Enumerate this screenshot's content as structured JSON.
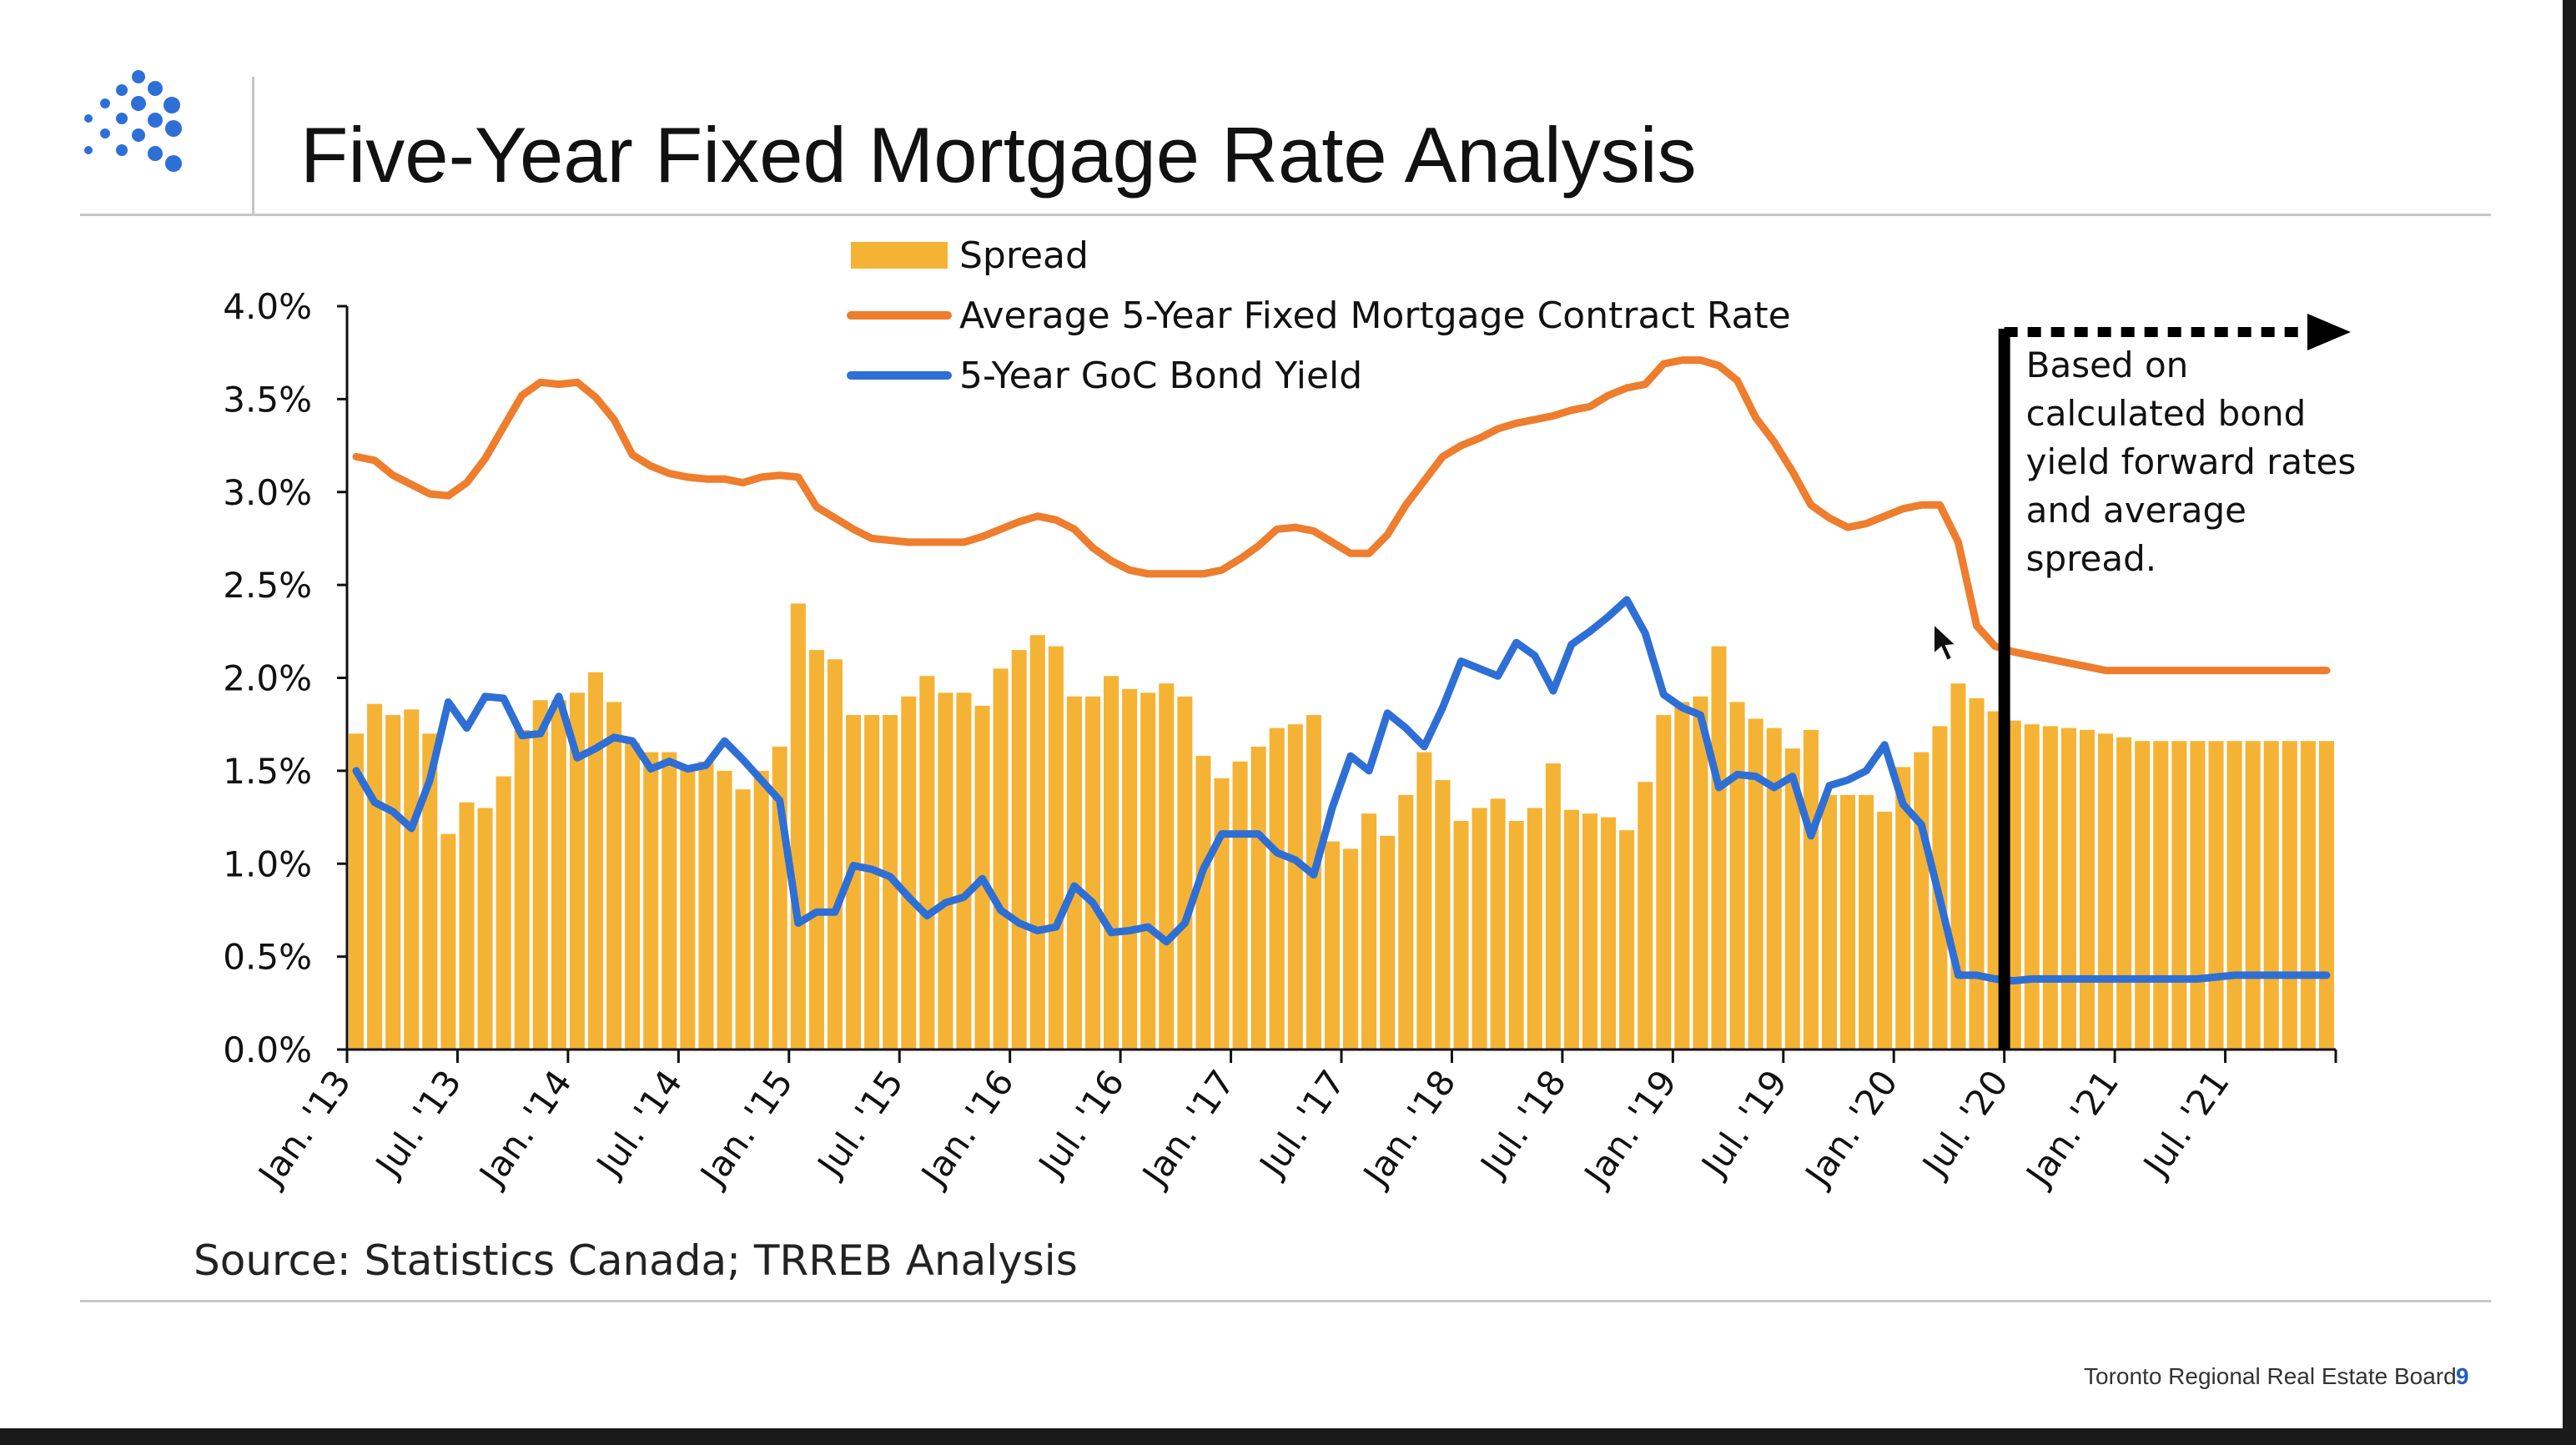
{
  "slide": {
    "title": "Five-Year Fixed Mortgage Rate Analysis",
    "source": "Source: Statistics Canada; TRREB Analysis",
    "footer_org": "Toronto Regional Real Estate Board",
    "page_number": "9",
    "logo_icon": "dot-grid-logo-icon"
  },
  "colors": {
    "spread": "#F5B335",
    "mortgage": "#EE7D2D",
    "bond": "#2E6FD6",
    "axis": "#111111",
    "logo": "#2E6FD6"
  },
  "chart_data": {
    "type": "bar",
    "title": "",
    "xlabel": "",
    "ylabel": "",
    "ylim": [
      0,
      4
    ],
    "y_ticks": [
      "0.0%",
      "0.5%",
      "1.0%",
      "1.5%",
      "2.0%",
      "2.5%",
      "3.0%",
      "3.5%",
      "4.0%"
    ],
    "x_tick_labels": [
      "Jan. '13",
      "Jul. '13",
      "Jan. '14",
      "Jul. '14",
      "Jan. '15",
      "Jul. '15",
      "Jan. '16",
      "Jul. '16",
      "Jan. '17",
      "Jul. '17",
      "Jan. '18",
      "Jul. '18",
      "Jan. '19",
      "Jul. '19",
      "Jan. '20",
      "Jul. '20",
      "Jan. '21",
      "Jul. '21"
    ],
    "x_start": "Jan. 2013",
    "x_end": "Dec. 2021",
    "grid": false,
    "legend_position": "top-center",
    "series": [
      {
        "name": "Spread",
        "type": "bar",
        "values": [
          1.7,
          1.86,
          1.8,
          1.83,
          1.7,
          1.16,
          1.33,
          1.3,
          1.47,
          1.72,
          1.88,
          1.88,
          1.92,
          2.03,
          1.87,
          1.65,
          1.6,
          1.6,
          1.53,
          1.55,
          1.5,
          1.4,
          1.5,
          1.63,
          2.4,
          2.15,
          2.1,
          1.8,
          1.8,
          1.8,
          1.9,
          2.01,
          1.92,
          1.92,
          1.85,
          2.05,
          2.15,
          2.23,
          2.17,
          1.9,
          1.9,
          2.01,
          1.94,
          1.92,
          1.97,
          1.9,
          1.58,
          1.46,
          1.55,
          1.63,
          1.73,
          1.75,
          1.8,
          1.12,
          1.08,
          1.27,
          1.15,
          1.37,
          1.6,
          1.45,
          1.23,
          1.3,
          1.35,
          1.23,
          1.3,
          1.54,
          1.29,
          1.27,
          1.25,
          1.18,
          1.44,
          1.8,
          1.87,
          1.9,
          2.17,
          1.87,
          1.78,
          1.73,
          1.62,
          1.72,
          1.37,
          1.37,
          1.37,
          1.28,
          1.52,
          1.6,
          1.74,
          1.97,
          1.89,
          1.82,
          1.77,
          1.75,
          1.74,
          1.73,
          1.72,
          1.7,
          1.68,
          1.66,
          1.66,
          1.66,
          1.66,
          1.66,
          1.66,
          1.66,
          1.66,
          1.66,
          1.66,
          1.66
        ]
      },
      {
        "name": "Average 5-Year Fixed Mortgage Contract Rate",
        "type": "line",
        "values": [
          3.19,
          3.17,
          3.09,
          3.04,
          2.99,
          2.98,
          3.05,
          3.18,
          3.35,
          3.52,
          3.59,
          3.58,
          3.59,
          3.51,
          3.39,
          3.2,
          3.14,
          3.1,
          3.08,
          3.07,
          3.07,
          3.05,
          3.08,
          3.09,
          3.08,
          2.92,
          2.86,
          2.8,
          2.75,
          2.74,
          2.73,
          2.73,
          2.73,
          2.73,
          2.76,
          2.8,
          2.84,
          2.87,
          2.85,
          2.8,
          2.7,
          2.63,
          2.58,
          2.56,
          2.56,
          2.56,
          2.56,
          2.58,
          2.64,
          2.71,
          2.8,
          2.81,
          2.79,
          2.73,
          2.67,
          2.67,
          2.77,
          2.93,
          3.06,
          3.19,
          3.25,
          3.29,
          3.34,
          3.37,
          3.39,
          3.41,
          3.44,
          3.46,
          3.52,
          3.56,
          3.58,
          3.69,
          3.71,
          3.71,
          3.68,
          3.6,
          3.4,
          3.27,
          3.11,
          2.93,
          2.86,
          2.81,
          2.83,
          2.87,
          2.91,
          2.93,
          2.93,
          2.73,
          2.28,
          2.17,
          2.14,
          2.12,
          2.1,
          2.08,
          2.06,
          2.04,
          2.04,
          2.04,
          2.04,
          2.04,
          2.04,
          2.04,
          2.04,
          2.04,
          2.04,
          2.04,
          2.04,
          2.04
        ]
      },
      {
        "name": "5-Year GoC Bond Yield",
        "type": "line",
        "values": [
          1.5,
          1.33,
          1.28,
          1.19,
          1.45,
          1.87,
          1.73,
          1.9,
          1.89,
          1.69,
          1.7,
          1.9,
          1.57,
          1.62,
          1.68,
          1.66,
          1.51,
          1.55,
          1.51,
          1.53,
          1.66,
          1.56,
          1.45,
          1.34,
          0.68,
          0.74,
          0.74,
          0.99,
          0.97,
          0.93,
          0.82,
          0.72,
          0.79,
          0.82,
          0.92,
          0.75,
          0.68,
          0.64,
          0.66,
          0.88,
          0.79,
          0.63,
          0.64,
          0.66,
          0.58,
          0.68,
          0.97,
          1.16,
          1.16,
          1.16,
          1.06,
          1.02,
          0.94,
          1.3,
          1.58,
          1.5,
          1.81,
          1.73,
          1.63,
          1.84,
          2.09,
          2.05,
          2.01,
          2.19,
          2.12,
          1.93,
          2.18,
          2.25,
          2.33,
          2.42,
          2.24,
          1.91,
          1.84,
          1.8,
          1.41,
          1.48,
          1.47,
          1.41,
          1.47,
          1.15,
          1.42,
          1.45,
          1.5,
          1.64,
          1.32,
          1.21,
          0.81,
          0.4,
          0.4,
          0.38,
          0.37,
          0.38,
          0.38,
          0.38,
          0.38,
          0.38,
          0.38,
          0.38,
          0.38,
          0.38,
          0.38,
          0.39,
          0.4,
          0.4,
          0.4,
          0.4,
          0.4,
          0.4
        ]
      }
    ],
    "annotation": {
      "text_lines": [
        "Based on",
        "calculated bond",
        "yield forward rates",
        "and average",
        "spread."
      ],
      "at": "Jul. '20"
    }
  }
}
